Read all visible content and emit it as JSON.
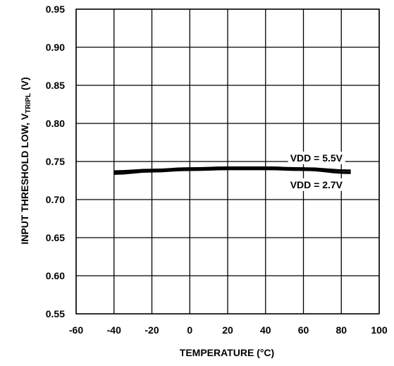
{
  "chart_data": {
    "type": "line",
    "title": "",
    "xlabel": "TEMPERATURE (°C)",
    "ylabel_prefix": "INPUT THRESHOLD LOW, V",
    "ylabel_subscript": "TRIPL",
    "ylabel_suffix": " (V)",
    "xlim": [
      -60,
      100
    ],
    "ylim": [
      0.55,
      0.95
    ],
    "x_ticks": [
      -60,
      -40,
      -20,
      0,
      20,
      40,
      60,
      80,
      100
    ],
    "x_tick_labels": [
      "-60",
      "-40",
      "-20",
      "0",
      "20",
      "40",
      "60",
      "80",
      "100"
    ],
    "y_ticks": [
      0.55,
      0.6,
      0.65,
      0.7,
      0.75,
      0.8,
      0.85,
      0.9,
      0.95
    ],
    "y_tick_labels": [
      "0.55",
      "0.60",
      "0.65",
      "0.70",
      "0.75",
      "0.80",
      "0.85",
      "0.90",
      "0.95"
    ],
    "grid": true,
    "series": [
      {
        "name": "VDD = 5.5V",
        "x": [
          -40,
          -20,
          0,
          20,
          40,
          60,
          85
        ],
        "y": [
          0.737,
          0.739,
          0.741,
          0.742,
          0.742,
          0.741,
          0.738
        ]
      },
      {
        "name": "VDD = 2.7V",
        "x": [
          -40,
          -20,
          0,
          20,
          40,
          60,
          85
        ],
        "y": [
          0.734,
          0.737,
          0.739,
          0.74,
          0.74,
          0.739,
          0.735
        ]
      }
    ],
    "annotations": [
      {
        "text": "VDD = 5.5V",
        "x": 53,
        "y": 0.75
      },
      {
        "text": "VDD = 2.7V",
        "x": 53,
        "y": 0.715
      }
    ]
  }
}
